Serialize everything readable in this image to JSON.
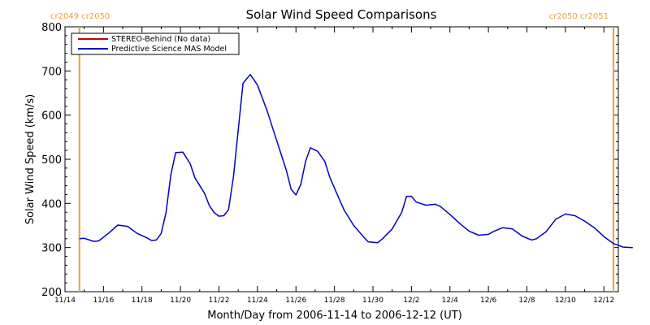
{
  "chart_data": {
    "type": "line",
    "title": "Solar Wind Speed Comparisons",
    "xlabel": "Month/Day from 2006-11-14 to 2006-12-12 (UT)",
    "ylabel": "Solar Wind Speed (km/s)",
    "ylim": [
      200,
      800
    ],
    "xlim": [
      "2006-11-14",
      "2006-12-12T18:00"
    ],
    "y_ticks": [
      200,
      300,
      400,
      500,
      600,
      700,
      800
    ],
    "x_ticks": [
      {
        "date": "2006-11-14",
        "label": "11/14"
      },
      {
        "date": "2006-11-16",
        "label": "11/16"
      },
      {
        "date": "2006-11-18",
        "label": "11/18"
      },
      {
        "date": "2006-11-20",
        "label": "11/20"
      },
      {
        "date": "2006-11-22",
        "label": "11/22"
      },
      {
        "date": "2006-11-24",
        "label": "11/24"
      },
      {
        "date": "2006-11-26",
        "label": "11/26"
      },
      {
        "date": "2006-11-28",
        "label": "11/28"
      },
      {
        "date": "2006-11-30",
        "label": "11/30"
      },
      {
        "date": "2006-12-02",
        "label": "12/2"
      },
      {
        "date": "2006-12-04",
        "label": "12/4"
      },
      {
        "date": "2006-12-06",
        "label": "12/6"
      },
      {
        "date": "2006-12-08",
        "label": "12/8"
      },
      {
        "date": "2006-12-10",
        "label": "12/10"
      },
      {
        "date": "2006-12-12",
        "label": "12/12"
      }
    ],
    "legend_placement": "top-left",
    "grid": false,
    "series": [
      {
        "name": "STEREO-Behind (No data)",
        "color": "#cc0000",
        "points": []
      },
      {
        "name": "Predictive Science MAS Model",
        "color": "#0000cc",
        "points": [
          [
            "2006-11-14T18:00",
            320
          ],
          [
            "2006-11-15T00:00",
            321
          ],
          [
            "2006-11-15T12:00",
            314
          ],
          [
            "2006-11-15T18:00",
            315
          ],
          [
            "2006-11-16T06:00",
            332
          ],
          [
            "2006-11-16T18:00",
            351
          ],
          [
            "2006-11-17T06:00",
            348
          ],
          [
            "2006-11-17T18:00",
            332
          ],
          [
            "2006-11-18T06:00",
            322
          ],
          [
            "2006-11-18T12:00",
            316
          ],
          [
            "2006-11-18T18:00",
            317
          ],
          [
            "2006-11-19T00:00",
            332
          ],
          [
            "2006-11-19T06:00",
            380
          ],
          [
            "2006-11-19T12:00",
            465
          ],
          [
            "2006-11-19T18:00",
            515
          ],
          [
            "2006-11-20T03:00",
            516
          ],
          [
            "2006-11-20T12:00",
            490
          ],
          [
            "2006-11-20T18:00",
            458
          ],
          [
            "2006-11-21T06:00",
            423
          ],
          [
            "2006-11-21T12:00",
            395
          ],
          [
            "2006-11-21T18:00",
            379
          ],
          [
            "2006-11-22T00:00",
            371
          ],
          [
            "2006-11-22T06:00",
            372
          ],
          [
            "2006-11-22T12:00",
            386
          ],
          [
            "2006-11-22T18:00",
            460
          ],
          [
            "2006-11-23T06:00",
            672
          ],
          [
            "2006-11-23T15:00",
            692
          ],
          [
            "2006-11-24T00:00",
            668
          ],
          [
            "2006-11-24T12:00",
            610
          ],
          [
            "2006-11-25T00:00",
            542
          ],
          [
            "2006-11-25T12:00",
            475
          ],
          [
            "2006-11-25T18:00",
            432
          ],
          [
            "2006-11-26T00:00",
            419
          ],
          [
            "2006-11-26T06:00",
            443
          ],
          [
            "2006-11-26T12:00",
            495
          ],
          [
            "2006-11-26T18:00",
            526
          ],
          [
            "2006-11-27T03:00",
            518
          ],
          [
            "2006-11-27T12:00",
            495
          ],
          [
            "2006-11-27T18:00",
            460
          ],
          [
            "2006-11-28T06:00",
            410
          ],
          [
            "2006-11-28T12:00",
            385
          ],
          [
            "2006-11-29T00:00",
            350
          ],
          [
            "2006-11-29T12:00",
            325
          ],
          [
            "2006-11-29T18:00",
            313
          ],
          [
            "2006-11-30T06:00",
            311
          ],
          [
            "2006-11-30T12:00",
            320
          ],
          [
            "2006-12-01T00:00",
            342
          ],
          [
            "2006-12-01T12:00",
            380
          ],
          [
            "2006-12-01T18:00",
            416
          ],
          [
            "2006-12-02T00:00",
            416
          ],
          [
            "2006-12-02T06:00",
            403
          ],
          [
            "2006-12-02T18:00",
            396
          ],
          [
            "2006-12-03T06:00",
            398
          ],
          [
            "2006-12-03T12:00",
            393
          ],
          [
            "2006-12-04T00:00",
            375
          ],
          [
            "2006-12-04T12:00",
            355
          ],
          [
            "2006-12-05T00:00",
            337
          ],
          [
            "2006-12-05T12:00",
            328
          ],
          [
            "2006-12-06T00:00",
            330
          ],
          [
            "2006-12-06T06:00",
            336
          ],
          [
            "2006-12-06T18:00",
            345
          ],
          [
            "2006-12-07T06:00",
            342
          ],
          [
            "2006-12-07T18:00",
            326
          ],
          [
            "2006-12-08T06:00",
            317
          ],
          [
            "2006-12-08T12:00",
            320
          ],
          [
            "2006-12-09T00:00",
            336
          ],
          [
            "2006-12-09T12:00",
            364
          ],
          [
            "2006-12-10T00:00",
            376
          ],
          [
            "2006-12-10T12:00",
            372
          ],
          [
            "2006-12-11T00:00",
            360
          ],
          [
            "2006-12-11T12:00",
            345
          ],
          [
            "2006-12-12T00:00",
            325
          ],
          [
            "2006-12-12T12:00",
            309
          ],
          [
            "2006-12-13T00:00",
            301
          ],
          [
            "2006-12-13T12:00",
            300
          ]
        ]
      }
    ],
    "markers": [
      {
        "date": "2006-11-14T18:00",
        "label": "cr2049 cr2050",
        "color": "#f0a030",
        "align": "left"
      },
      {
        "date": "2006-12-12T12:00",
        "label": "cr2050 cr2051",
        "color": "#f0a030",
        "align": "right"
      }
    ]
  }
}
